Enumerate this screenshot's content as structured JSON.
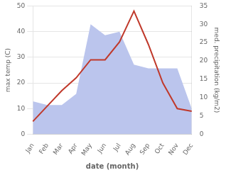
{
  "chart_data": {
    "type": "line",
    "categories": [
      "Jan",
      "Feb",
      "Mar",
      "Apr",
      "May",
      "Jun",
      "Jul",
      "Aug",
      "Sep",
      "Oct",
      "Nov",
      "Dec"
    ],
    "series": [
      {
        "type": "area",
        "color": "#bbc5ed",
        "axis": "y2",
        "values": [
          9,
          8,
          8,
          11,
          30,
          27,
          28,
          19,
          18,
          18,
          18,
          7
        ]
      },
      {
        "type": "line",
        "color": "#c0392b",
        "values": [
          5,
          11,
          17,
          22,
          29,
          29,
          36,
          48,
          35,
          20,
          10,
          9
        ]
      }
    ],
    "xlabel": "date (month)",
    "ylabel": "max temp (C)",
    "y2label": "med. precipitation (kg/m2)",
    "ylim": [
      0,
      50
    ],
    "yticks": [
      0,
      10,
      20,
      30,
      40,
      50
    ],
    "y2lim": [
      0,
      35
    ],
    "y2ticks": [
      0,
      5,
      10,
      15,
      20,
      25,
      30,
      35
    ],
    "grid": true
  }
}
